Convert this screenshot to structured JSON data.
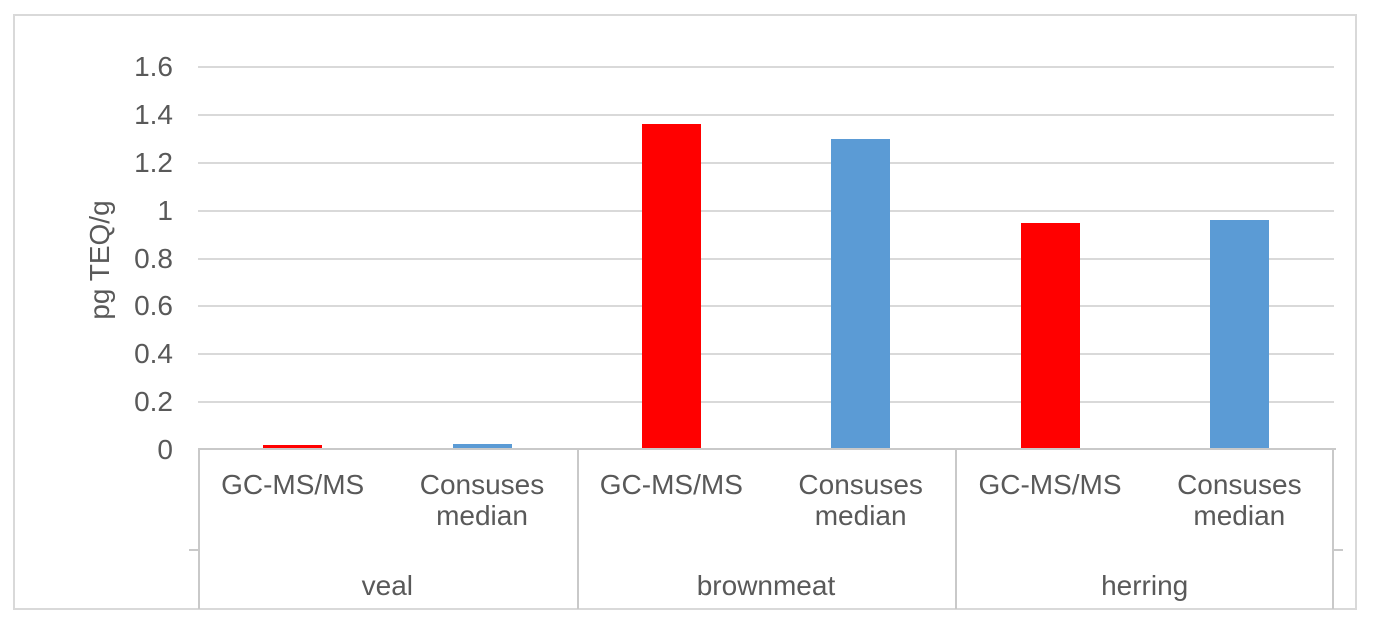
{
  "chart_data": {
    "type": "bar",
    "title": "",
    "ylabel": "pg TEQ/g",
    "xlabel": "",
    "ylim": [
      0,
      1.6
    ],
    "ytick_interval": 0.2,
    "yticks": [
      "0",
      "0.2",
      "0.4",
      "0.6",
      "0.8",
      "1",
      "1.2",
      "1.4",
      "1.6"
    ],
    "grid": true,
    "legend": "none",
    "groups": [
      "veal",
      "brownmeat",
      "herring"
    ],
    "categories_per_group": [
      "GC-MS/MS",
      "Consuses median"
    ],
    "series": [
      {
        "name": "GC-MS/MS",
        "color": "#FF0000",
        "values": [
          0.02,
          1.36,
          0.95
        ]
      },
      {
        "name": "Consuses median",
        "color": "#5B9BD5",
        "values": [
          0.025,
          1.3,
          0.96
        ]
      }
    ],
    "colors": {
      "axis_text": "#595959",
      "gridline": "#D9D9D9",
      "axis_line": "#C9C9C9",
      "frame_border": "#D9D9D9",
      "series_red": "#FF0000",
      "series_blue": "#5B9BD5"
    }
  }
}
